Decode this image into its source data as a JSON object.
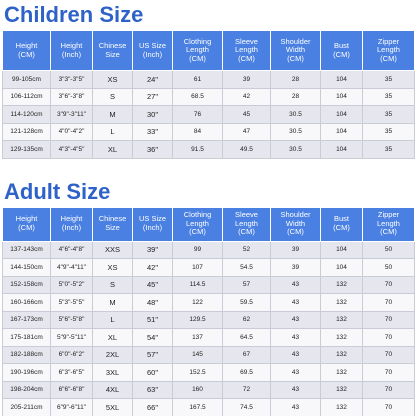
{
  "children": {
    "title": "Children Size",
    "headers": [
      "Height\n(CM)",
      "Height\n(Inch)",
      "Chinese\nSize",
      "US Size\n(Inch)",
      "Clothing\nLength\n(CM)",
      "Sleeve\nLength\n(CM)",
      "Shoulder\nWidth\n(CM)",
      "Bust\n(CM)",
      "Zipper\nLength\n(CM)"
    ],
    "rows": [
      [
        "99-105cm",
        "3\"3\"-3\"5\"",
        "XS",
        "24\"",
        "61",
        "39",
        "28",
        "104",
        "35"
      ],
      [
        "106-112cm",
        "3\"6\"-3\"8\"",
        "S",
        "27\"",
        "68.5",
        "42",
        "28",
        "104",
        "35"
      ],
      [
        "114-120cm",
        "3\"9\"-3\"11\"",
        "M",
        "30\"",
        "76",
        "45",
        "30.5",
        "104",
        "35"
      ],
      [
        "121-128cm",
        "4\"0\"-4\"2\"",
        "L",
        "33\"",
        "84",
        "47",
        "30.5",
        "104",
        "35"
      ],
      [
        "129-135cm",
        "4\"3\"-4\"5\"",
        "XL",
        "36\"",
        "91.5",
        "49.5",
        "30.5",
        "104",
        "35"
      ]
    ]
  },
  "adult": {
    "title": "Adult Size",
    "headers": [
      "Height\n(CM)",
      "Height\n(Inch)",
      "Chinese\nSize",
      "US Size\n(Inch)",
      "Clothing\nLength\n(CM)",
      "Sleeve\nLength\n(CM)",
      "Shoulder\nWidth\n(CM)",
      "Bust\n(CM)",
      "Zipper\nLength\n(CM)"
    ],
    "rows": [
      [
        "137-143cm",
        "4\"6\"-4\"8\"",
        "XXS",
        "39\"",
        "99",
        "52",
        "39",
        "104",
        "50"
      ],
      [
        "144-150cm",
        "4\"9\"-4\"11\"",
        "XS",
        "42\"",
        "107",
        "54.5",
        "39",
        "104",
        "50"
      ],
      [
        "152-158cm",
        "5\"0\"-5\"2\"",
        "S",
        "45\"",
        "114.5",
        "57",
        "43",
        "132",
        "70"
      ],
      [
        "160-166cm",
        "5\"3\"-5\"5\"",
        "M",
        "48\"",
        "122",
        "59.5",
        "43",
        "132",
        "70"
      ],
      [
        "167-173cm",
        "5\"6\"-5\"8\"",
        "L",
        "51\"",
        "129.5",
        "62",
        "43",
        "132",
        "70"
      ],
      [
        "175-181cm",
        "5\"9\"-5\"11\"",
        "XL",
        "54\"",
        "137",
        "64.5",
        "43",
        "132",
        "70"
      ],
      [
        "182-188cm",
        "6\"0\"-6\"2\"",
        "2XL",
        "57\"",
        "145",
        "67",
        "43",
        "132",
        "70"
      ],
      [
        "190-196cm",
        "6\"3\"-6\"5\"",
        "3XL",
        "60\"",
        "152.5",
        "69.5",
        "43",
        "132",
        "70"
      ],
      [
        "198-204cm",
        "6\"6\"-6\"8\"",
        "4XL",
        "63\"",
        "160",
        "72",
        "43",
        "132",
        "70"
      ],
      [
        "205-211cm",
        "6\"9\"-6\"11\"",
        "5XL",
        "66\"",
        "167.5",
        "74.5",
        "43",
        "132",
        "70"
      ]
    ]
  }
}
